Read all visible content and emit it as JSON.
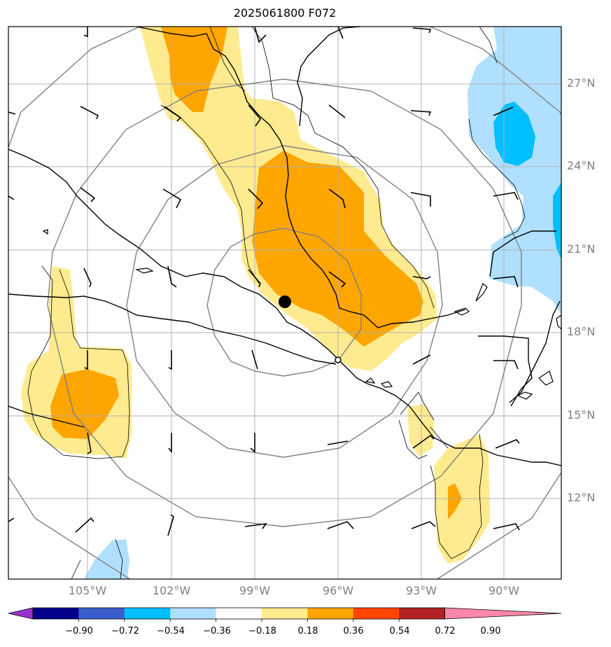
{
  "title": "2025061800 F072",
  "lat_labels": [
    "27°N",
    "24°N",
    "21°N",
    "18°N",
    "15°N",
    "12°N"
  ],
  "lon_labels": [
    "105°W",
    "102°W",
    "99°W",
    "96°W",
    "93°W",
    "90°W"
  ],
  "colorbar": {
    "ticks": [
      "−0.90",
      "−0.72",
      "−0.54",
      "−0.36",
      "−0.18",
      "0.18",
      "0.36",
      "0.54",
      "0.72",
      "0.90"
    ],
    "colors": [
      "#9932cc",
      "#00008b",
      "#3a5fcd",
      "#00bfff",
      "#b0e0ff",
      "#ffffff",
      "#ffeb8f",
      "#ffa500",
      "#ff4500",
      "#b22222",
      "#ff88aa"
    ]
  },
  "colors": {
    "light_yellow": "#ffeb8f",
    "orange": "#ffa500",
    "light_blue": "#b0e0ff",
    "deep_sky_blue": "#00bfff",
    "range_rings": "#808080",
    "gridlines": "#b0b0b0"
  },
  "markers": {
    "storm_center": {
      "lat": 19.1,
      "lon": -97.9,
      "style": "filled-circle"
    },
    "reference_point": {
      "lat": 16.9,
      "lon": -96.0,
      "style": "open-circle"
    }
  }
}
